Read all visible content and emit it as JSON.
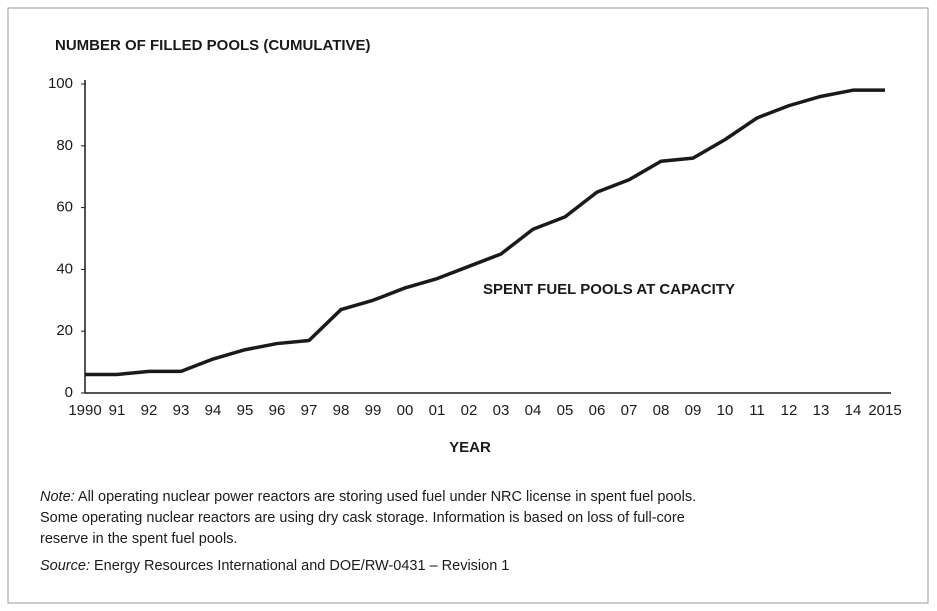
{
  "chart_data": {
    "type": "line",
    "title": "NUMBER OF FILLED POOLS (CUMULATIVE)",
    "xlabel": "YEAR",
    "annotation": "SPENT FUEL POOLS AT CAPACITY",
    "categories": [
      "1990",
      "91",
      "92",
      "93",
      "94",
      "95",
      "96",
      "97",
      "98",
      "99",
      "00",
      "01",
      "02",
      "03",
      "04",
      "05",
      "06",
      "07",
      "08",
      "09",
      "10",
      "11",
      "12",
      "13",
      "14",
      "2015"
    ],
    "values": [
      6,
      6,
      7,
      7,
      11,
      14,
      16,
      17,
      27,
      30,
      34,
      37,
      41,
      45,
      53,
      57,
      65,
      69,
      75,
      76,
      82,
      89,
      93,
      96,
      98,
      98
    ],
    "color": "#1a1a1a",
    "ylim": [
      0,
      100
    ],
    "yticks": [
      0,
      20,
      40,
      60,
      80,
      100
    ],
    "grid": false
  },
  "note": {
    "label": "Note:",
    "lines": [
      "All operating nuclear power reactors are storing used fuel under NRC license in spent fuel pools.",
      "Some operating nuclear reactors are using dry cask storage.  Information is based on loss of full-core",
      "reserve in the spent fuel pools."
    ]
  },
  "source": {
    "label": "Source:",
    "text": "Energy Resources International and DOE/RW-0431 – Revision 1"
  }
}
